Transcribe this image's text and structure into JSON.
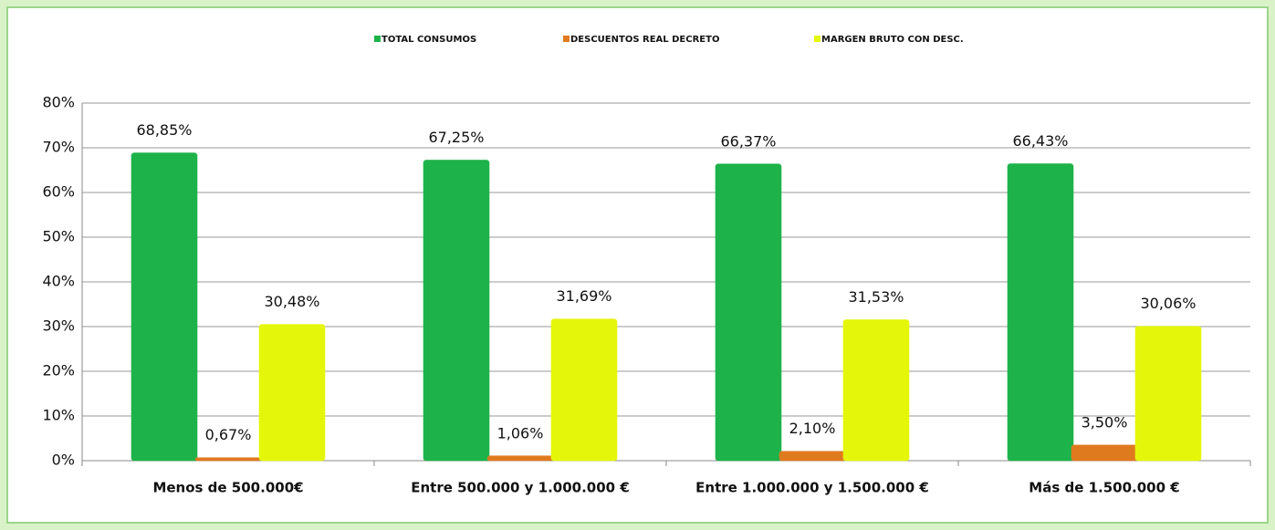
{
  "chart_data": {
    "type": "bar",
    "categories": [
      "Menos de 500.000€",
      "Entre 500.000  y 1.000.000  €",
      "Entre 1.000.000  y 1.500.000  €",
      "Más de 1.500.000  €"
    ],
    "series": [
      {
        "name": "TOTAL CONSUMOS",
        "color": "#1db34a",
        "values": [
          68.85,
          67.25,
          66.37,
          66.43
        ],
        "value_labels": [
          "68,85%",
          "67,25%",
          "66,37%",
          "66,43%"
        ]
      },
      {
        "name": "DESCUENTOS REAL DECRETO",
        "color": "#e07a1f",
        "values": [
          0.67,
          1.06,
          2.1,
          3.5
        ],
        "value_labels": [
          "0,67%",
          "1,06%",
          "2,10%",
          "3,50%"
        ]
      },
      {
        "name": "MARGEN BRUTO CON DESC.",
        "color": "#e4f70a",
        "values": [
          30.48,
          31.69,
          31.53,
          30.06
        ],
        "value_labels": [
          "30,48%",
          "31,69%",
          "31,53%",
          "30,06%"
        ]
      }
    ],
    "ylim": [
      0,
      80
    ],
    "yticks": [
      {
        "value": 0,
        "label": "0%"
      },
      {
        "value": 10,
        "label": "10%"
      },
      {
        "value": 20,
        "label": "20%"
      },
      {
        "value": 30,
        "label": "30%"
      },
      {
        "value": 40,
        "label": "40%"
      },
      {
        "value": 50,
        "label": "50%"
      },
      {
        "value": 60,
        "label": "60%"
      },
      {
        "value": 70,
        "label": "70%"
      },
      {
        "value": 80,
        "label": "80%"
      }
    ],
    "grid": true,
    "legend": "top"
  }
}
